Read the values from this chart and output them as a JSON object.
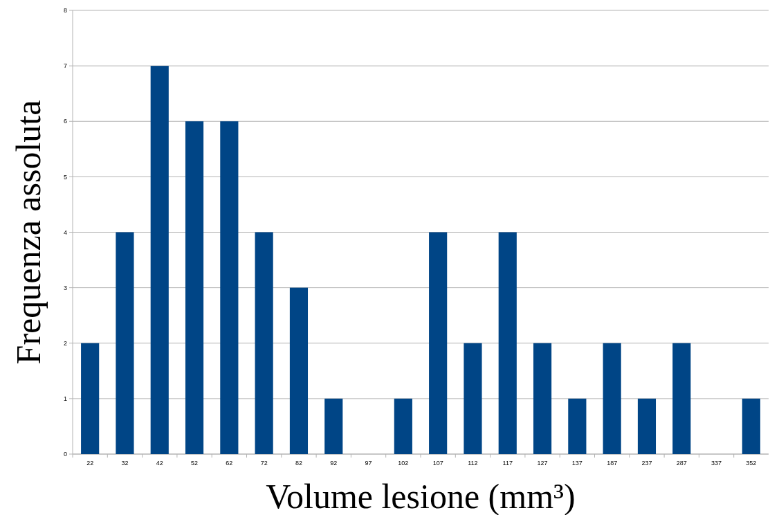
{
  "chart_data": {
    "type": "bar",
    "xlabel": "Volume lesione (mm³)",
    "ylabel": "Frequenza assoluta",
    "categories": [
      "22",
      "32",
      "42",
      "52",
      "62",
      "72",
      "82",
      "92",
      "97",
      "102",
      "107",
      "112",
      "117",
      "127",
      "137",
      "187",
      "237",
      "287",
      "337",
      "352"
    ],
    "values": [
      2,
      4,
      7,
      6,
      6,
      4,
      3,
      1,
      0,
      1,
      4,
      2,
      4,
      2,
      1,
      2,
      1,
      2,
      0,
      1
    ],
    "color": "#004586",
    "ylim": [
      0,
      8
    ],
    "yticks": [
      0,
      1,
      2,
      3,
      4,
      5,
      6,
      7,
      8
    ],
    "grid": "y"
  }
}
